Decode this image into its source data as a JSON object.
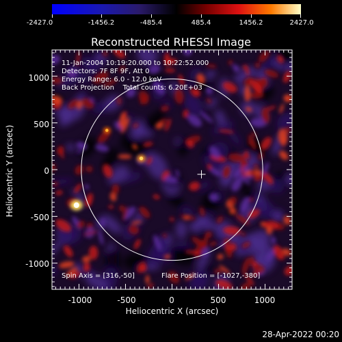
{
  "colorbar": {
    "ticks": [
      "-2427.0",
      "-1456.2",
      "-485.4",
      "485.4",
      "1456.2",
      "2427.0"
    ],
    "ticks_values": [
      -2427.0,
      -1456.2,
      -485.4,
      485.4,
      1456.2,
      2427.0
    ],
    "range": [
      -2427.0,
      2427.0
    ]
  },
  "title": "Reconstructed RHESSI Image",
  "annotations": {
    "time": "11-Jan-2004 10:19:20.000 to 10:22:52.000",
    "detectors": "Detectors: 7F 8F 9F, Att 0",
    "energy": "Energy Range: 6.0 - 12.0 keV",
    "method": "Back Projection    Total counts: 6.20E+03",
    "spin_axis": "Spin Axis = [316,-50]",
    "flare_position": "Flare Position = [-1027,-380]"
  },
  "axes": {
    "xlabel": "Heliocentric X (arcsec)",
    "ylabel": "Heliocentric Y (arcsec)",
    "xticks": [
      "-1000",
      "-500",
      "0",
      "500",
      "1000"
    ],
    "yticks": [
      "1000",
      "500",
      "0",
      "-500",
      "-1000"
    ],
    "xlim": [
      -1290,
      1290
    ],
    "ylim": [
      -1280,
      1280
    ]
  },
  "overlay": {
    "solar_limb_radius_arcsec": 975,
    "crosshair_position_arcsec": [
      316,
      -50
    ]
  },
  "footer": "28-Apr-2022 00:20"
}
